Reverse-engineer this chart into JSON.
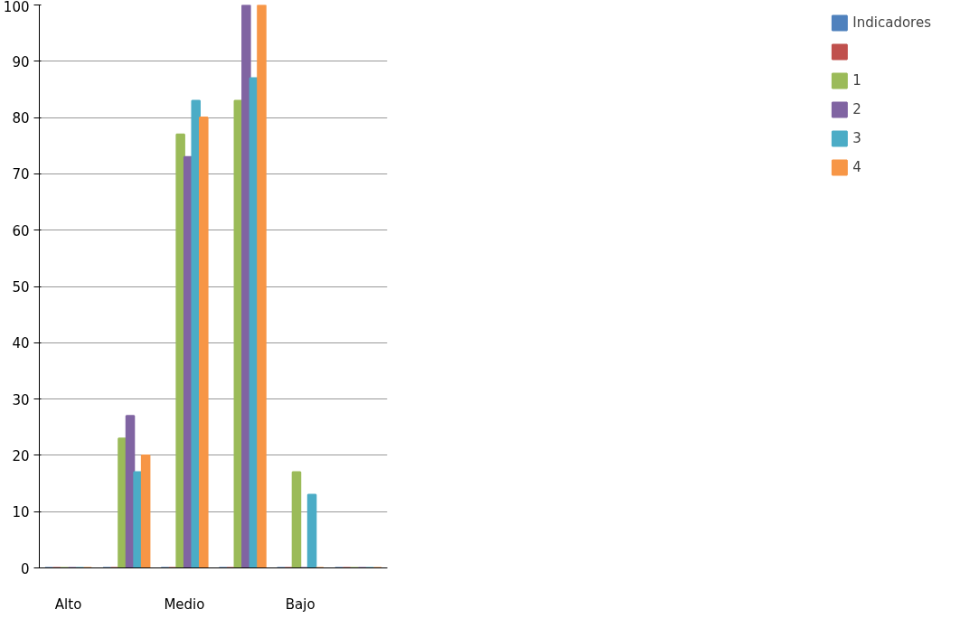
{
  "chart_data": {
    "type": "bar",
    "categories": [
      "Alto",
      null,
      "Medio",
      null,
      "Bajo",
      null
    ],
    "series": [
      {
        "name": "Indicadores",
        "color": "#4f81bd",
        "values": [
          0,
          0,
          0,
          0,
          0,
          0
        ]
      },
      {
        "color": "#c0504d",
        "values": [
          0,
          0,
          0,
          0,
          0,
          0
        ]
      },
      {
        "name": "1",
        "color": "#9bbb59",
        "values": [
          0,
          23,
          77,
          83,
          17,
          0
        ]
      },
      {
        "name": "2",
        "color": "#8064a2",
        "values": [
          0,
          27,
          73,
          100,
          0,
          0
        ]
      },
      {
        "name": "3",
        "color": "#4bacc6",
        "values": [
          0,
          17,
          83,
          87,
          13,
          0
        ]
      },
      {
        "name": "4",
        "color": "#f79646",
        "values": [
          0,
          20,
          80,
          100,
          0,
          0
        ]
      }
    ],
    "ylim": [
      0,
      100
    ],
    "yticks": [
      0,
      10,
      20,
      30,
      40,
      50,
      60,
      70,
      80,
      90,
      100
    ],
    "grid": "y",
    "legend": "right"
  }
}
